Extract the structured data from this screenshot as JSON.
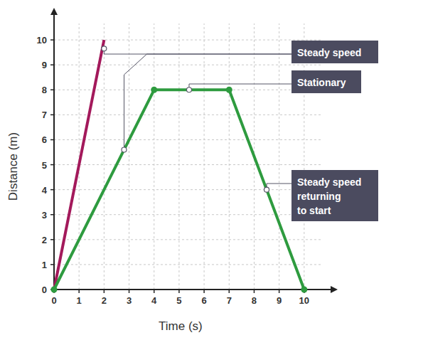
{
  "chart_data": {
    "type": "line",
    "x_label": "Time (s)",
    "y_label": "Distance (m)",
    "xlim": [
      0,
      11
    ],
    "ylim": [
      0,
      11
    ],
    "xticks": [
      0,
      1,
      2,
      3,
      4,
      5,
      6,
      7,
      8,
      9,
      10
    ],
    "yticks": [
      0,
      1,
      2,
      3,
      4,
      5,
      6,
      7,
      8,
      9,
      10
    ],
    "grid": true,
    "series": [
      {
        "color": "#a3195b",
        "x": [
          0,
          2
        ],
        "values": [
          0,
          10
        ]
      },
      {
        "color": "#2e9b3f",
        "marker": "circle",
        "x": [
          0,
          4,
          7,
          10
        ],
        "values": [
          0,
          8,
          8,
          0
        ]
      }
    ],
    "annotations": [
      {
        "text": [
          "Steady speed"
        ],
        "points": [
          {
            "x": 2,
            "y": 9.65
          },
          {
            "x": 2.8,
            "y": 5.6
          }
        ]
      },
      {
        "text": [
          "Stationary"
        ],
        "points": [
          {
            "x": 5.4,
            "y": 8
          }
        ]
      },
      {
        "text": [
          "Steady speed",
          "returning",
          "to start"
        ],
        "points": [
          {
            "x": 8.5,
            "y": 4
          }
        ]
      }
    ]
  }
}
